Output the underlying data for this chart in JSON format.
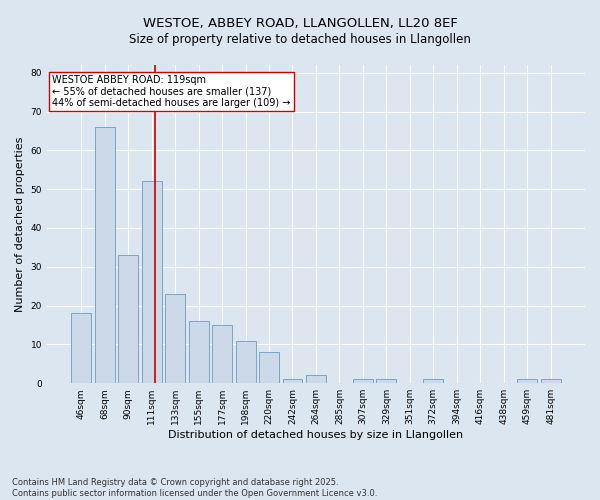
{
  "title1": "WESTOE, ABBEY ROAD, LLANGOLLEN, LL20 8EF",
  "title2": "Size of property relative to detached houses in Llangollen",
  "xlabel": "Distribution of detached houses by size in Llangollen",
  "ylabel": "Number of detached properties",
  "categories": [
    "46sqm",
    "68sqm",
    "90sqm",
    "111sqm",
    "133sqm",
    "155sqm",
    "177sqm",
    "198sqm",
    "220sqm",
    "242sqm",
    "264sqm",
    "285sqm",
    "307sqm",
    "329sqm",
    "351sqm",
    "372sqm",
    "394sqm",
    "416sqm",
    "438sqm",
    "459sqm",
    "481sqm"
  ],
  "values": [
    18,
    66,
    33,
    52,
    23,
    16,
    15,
    11,
    8,
    1,
    2,
    0,
    1,
    1,
    0,
    1,
    0,
    0,
    0,
    1,
    1
  ],
  "bar_color": "#ccd9e8",
  "bar_edge_color": "#6a9cbf",
  "bar_linewidth": 0.6,
  "red_line_x": 3.15,
  "red_line_color": "#cc0000",
  "annotation_text": "WESTOE ABBEY ROAD: 119sqm\n← 55% of detached houses are smaller (137)\n44% of semi-detached houses are larger (109) →",
  "annotation_box_color": "#ffffff",
  "annotation_box_edge": "#cc0000",
  "ylim": [
    0,
    82
  ],
  "yticks": [
    0,
    10,
    20,
    30,
    40,
    50,
    60,
    70,
    80
  ],
  "background_color": "#dce6f0",
  "plot_bg_color": "#dce6f0",
  "grid_color": "#ffffff",
  "footnote": "Contains HM Land Registry data © Crown copyright and database right 2025.\nContains public sector information licensed under the Open Government Licence v3.0.",
  "title_fontsize": 9.5,
  "subtitle_fontsize": 8.5,
  "axis_label_fontsize": 8,
  "tick_fontsize": 6.5,
  "annotation_fontsize": 7,
  "footnote_fontsize": 6
}
